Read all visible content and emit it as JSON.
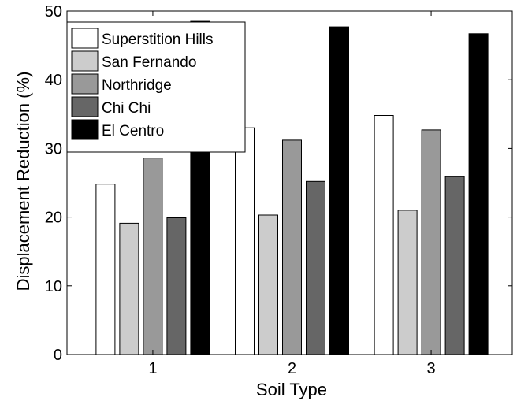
{
  "chart_data": {
    "type": "bar",
    "title": "",
    "xlabel": "Soil Type",
    "ylabel": "Displacement Reduction (%)",
    "ylim": [
      0,
      50
    ],
    "yticks": [
      0,
      10,
      20,
      30,
      40,
      50
    ],
    "categories": [
      "1",
      "2",
      "3"
    ],
    "grid": false,
    "legend_position": "top-left",
    "series": [
      {
        "name": "Superstition Hills",
        "color": "#ffffff",
        "values": [
          24.8,
          33.0,
          34.8
        ]
      },
      {
        "name": "San Fernando",
        "color": "#cccccc",
        "values": [
          19.1,
          20.3,
          21.0
        ]
      },
      {
        "name": "Northridge",
        "color": "#999999",
        "values": [
          28.6,
          31.2,
          32.7
        ]
      },
      {
        "name": "Chi Chi",
        "color": "#666666",
        "values": [
          19.9,
          25.2,
          25.9
        ]
      },
      {
        "name": "El Centro",
        "color": "#000000",
        "values": [
          48.5,
          47.7,
          46.7
        ]
      }
    ]
  }
}
